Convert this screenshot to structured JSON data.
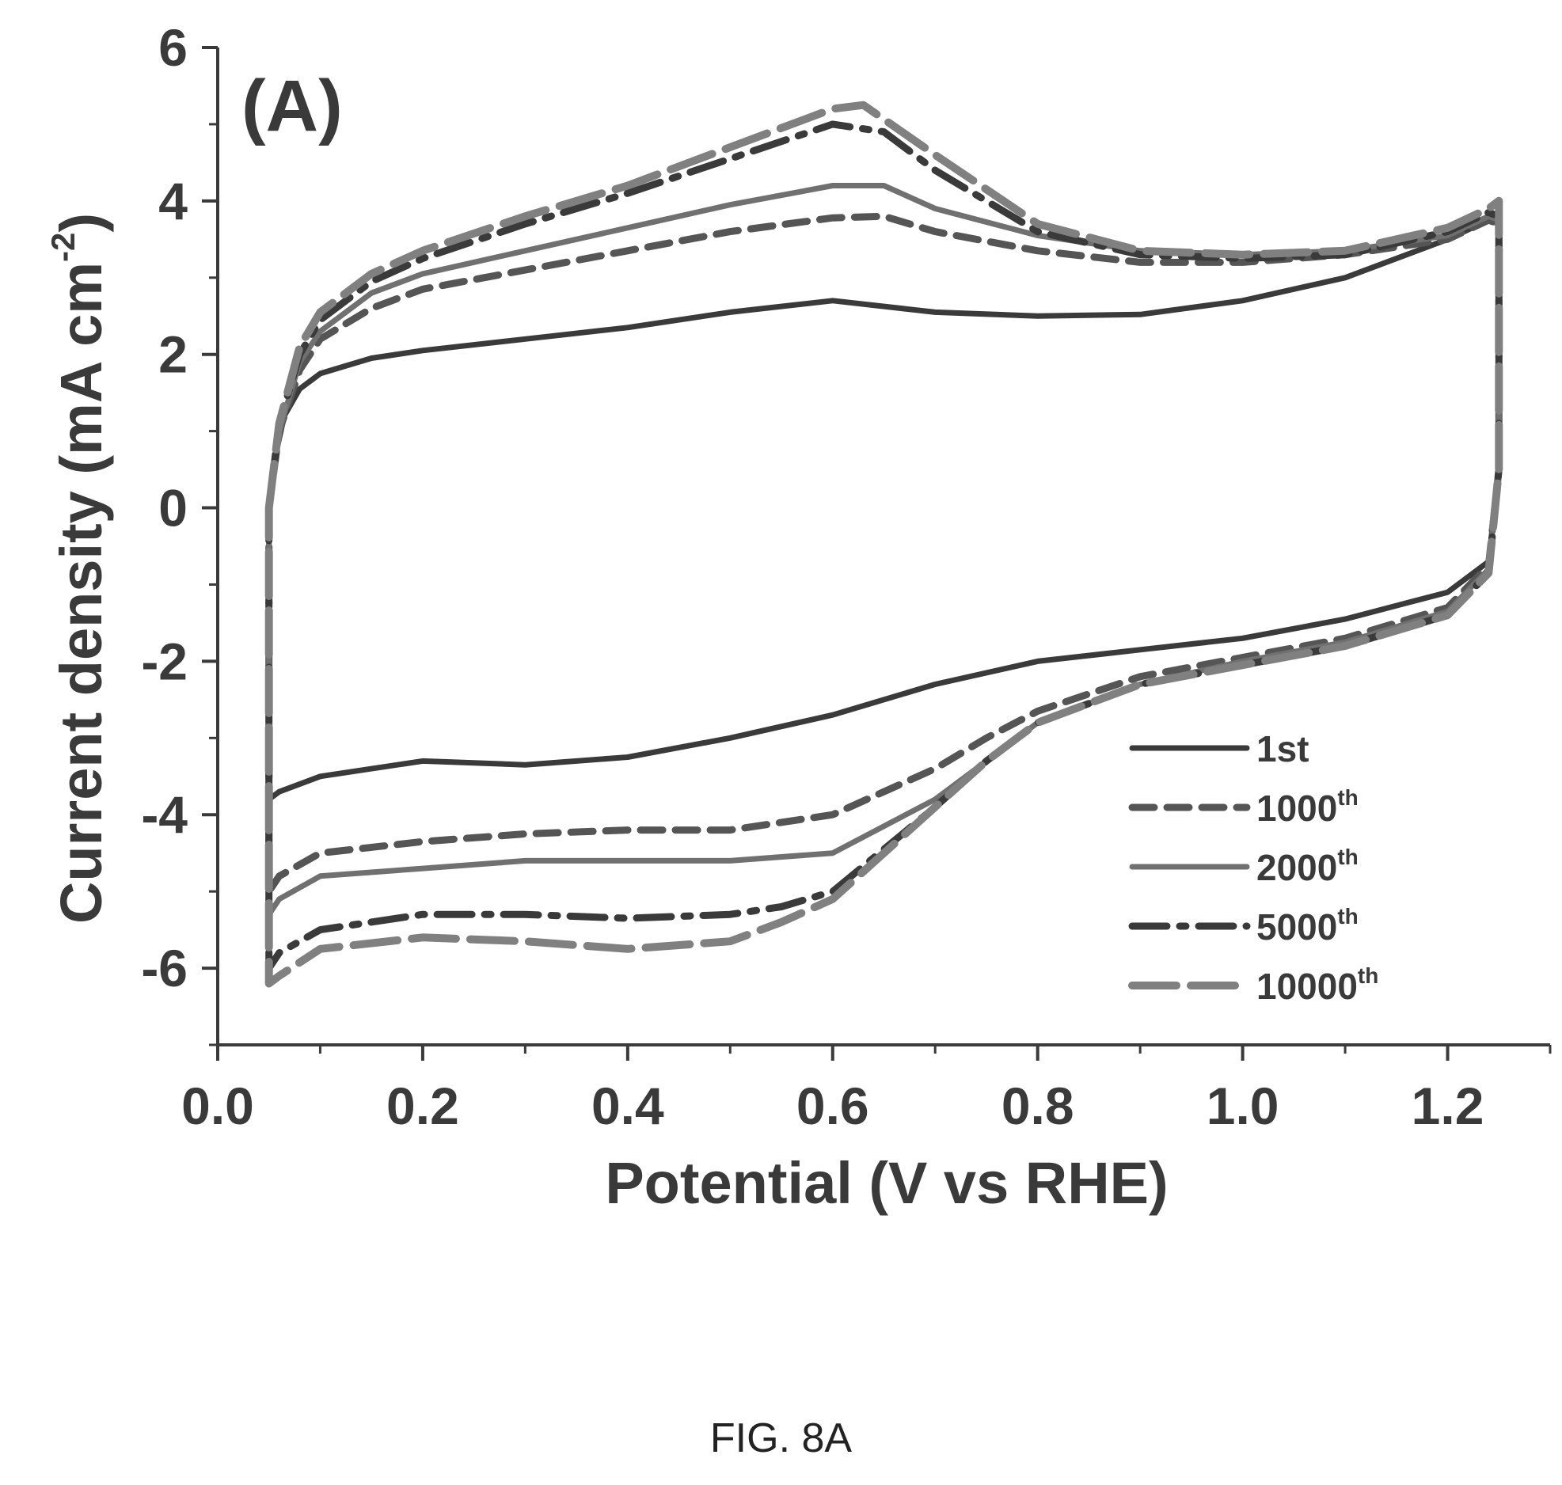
{
  "figure": {
    "caption": "FIG. 8A",
    "panel_label": "(A)"
  },
  "chart_data": {
    "type": "line",
    "title": "",
    "xlabel": "Potential (V vs RHE)",
    "ylabel": "Current density (mA cm",
    "ylabel_sup": "-2",
    "ylabel_end": ")",
    "xlim": [
      0.0,
      1.3
    ],
    "ylim": [
      -7,
      6
    ],
    "x_ticks": [
      0.0,
      0.2,
      0.4,
      0.6,
      0.8,
      1.0,
      1.2
    ],
    "x_tick_labels": [
      "0.0",
      "0.2",
      "0.4",
      "0.6",
      "0.8",
      "1.0",
      "1.2"
    ],
    "y_ticks": [
      -6,
      -4,
      -2,
      0,
      2,
      4,
      6
    ],
    "y_tick_labels": [
      "-6",
      "-4",
      "-2",
      "0",
      "2",
      "4",
      "6"
    ],
    "grid": false,
    "legend_position": "bottom-right",
    "series": [
      {
        "name": "1st",
        "sup": "",
        "style": "solid",
        "color": "#3a3a3a",
        "x": [
          0.05,
          0.055,
          0.065,
          0.08,
          0.1,
          0.15,
          0.2,
          0.3,
          0.4,
          0.5,
          0.6,
          0.7,
          0.8,
          0.9,
          1.0,
          1.1,
          1.2,
          1.24,
          1.25,
          1.25,
          1.24,
          1.2,
          1.1,
          1.0,
          0.9,
          0.8,
          0.7,
          0.6,
          0.5,
          0.4,
          0.3,
          0.2,
          0.1,
          0.06,
          0.05,
          0.05
        ],
        "y": [
          0.0,
          0.6,
          1.2,
          1.55,
          1.75,
          1.95,
          2.05,
          2.2,
          2.35,
          2.55,
          2.7,
          2.55,
          2.5,
          2.52,
          2.7,
          3.0,
          3.5,
          3.75,
          3.7,
          0.5,
          -0.7,
          -1.1,
          -1.45,
          -1.7,
          -1.85,
          -2.0,
          -2.3,
          -2.7,
          -3.0,
          -3.25,
          -3.35,
          -3.3,
          -3.5,
          -3.7,
          -3.8,
          0.0
        ]
      },
      {
        "name": "1000",
        "sup": "th",
        "style": "dashed",
        "color": "#555555",
        "x": [
          0.05,
          0.06,
          0.08,
          0.1,
          0.15,
          0.2,
          0.3,
          0.4,
          0.5,
          0.6,
          0.65,
          0.7,
          0.8,
          0.9,
          1.0,
          1.1,
          1.2,
          1.24,
          1.25,
          1.25,
          1.24,
          1.2,
          1.1,
          1.0,
          0.9,
          0.8,
          0.75,
          0.7,
          0.6,
          0.5,
          0.4,
          0.3,
          0.2,
          0.1,
          0.06,
          0.05,
          0.05
        ],
        "y": [
          0.0,
          1.0,
          1.8,
          2.2,
          2.6,
          2.85,
          3.1,
          3.35,
          3.6,
          3.78,
          3.8,
          3.6,
          3.35,
          3.2,
          3.2,
          3.3,
          3.5,
          3.75,
          3.7,
          0.5,
          -0.75,
          -1.3,
          -1.7,
          -1.95,
          -2.2,
          -2.65,
          -3.0,
          -3.4,
          -4.0,
          -4.2,
          -4.2,
          -4.25,
          -4.35,
          -4.5,
          -4.8,
          -5.0,
          0.0
        ]
      },
      {
        "name": "2000",
        "sup": "th",
        "style": "solid",
        "color": "#707070",
        "x": [
          0.05,
          0.06,
          0.08,
          0.1,
          0.15,
          0.2,
          0.3,
          0.4,
          0.5,
          0.6,
          0.65,
          0.7,
          0.8,
          0.9,
          1.0,
          1.1,
          1.2,
          1.24,
          1.25,
          1.25,
          1.24,
          1.2,
          1.1,
          1.0,
          0.9,
          0.8,
          0.75,
          0.7,
          0.6,
          0.5,
          0.4,
          0.3,
          0.2,
          0.1,
          0.06,
          0.05,
          0.05
        ],
        "y": [
          0.0,
          1.0,
          1.9,
          2.3,
          2.8,
          3.05,
          3.35,
          3.65,
          3.95,
          4.2,
          4.2,
          3.9,
          3.55,
          3.35,
          3.3,
          3.35,
          3.55,
          3.8,
          3.75,
          0.5,
          -0.8,
          -1.35,
          -1.75,
          -2.0,
          -2.3,
          -2.8,
          -3.3,
          -3.8,
          -4.5,
          -4.6,
          -4.6,
          -4.6,
          -4.7,
          -4.8,
          -5.1,
          -5.3,
          0.0
        ]
      },
      {
        "name": "5000",
        "sup": "th",
        "style": "dashdot",
        "color": "#3a3a3a",
        "x": [
          0.05,
          0.06,
          0.08,
          0.1,
          0.15,
          0.2,
          0.3,
          0.4,
          0.5,
          0.6,
          0.65,
          0.7,
          0.8,
          0.9,
          1.0,
          1.1,
          1.2,
          1.24,
          1.25,
          1.25,
          1.24,
          1.2,
          1.1,
          1.0,
          0.9,
          0.8,
          0.75,
          0.7,
          0.6,
          0.55,
          0.5,
          0.4,
          0.3,
          0.2,
          0.1,
          0.06,
          0.05,
          0.05
        ],
        "y": [
          0.0,
          1.1,
          2.0,
          2.45,
          2.95,
          3.25,
          3.7,
          4.1,
          4.55,
          5.0,
          4.9,
          4.4,
          3.6,
          3.3,
          3.25,
          3.3,
          3.6,
          3.85,
          3.8,
          0.5,
          -0.85,
          -1.4,
          -1.8,
          -2.05,
          -2.3,
          -2.8,
          -3.3,
          -3.9,
          -5.0,
          -5.2,
          -5.3,
          -5.35,
          -5.3,
          -5.3,
          -5.5,
          -5.8,
          -6.0,
          0.0
        ]
      },
      {
        "name": "10000",
        "sup": "th",
        "style": "longdash",
        "color": "#808080",
        "x": [
          0.05,
          0.06,
          0.08,
          0.1,
          0.15,
          0.2,
          0.3,
          0.4,
          0.5,
          0.6,
          0.63,
          0.7,
          0.8,
          0.9,
          1.0,
          1.1,
          1.2,
          1.24,
          1.25,
          1.25,
          1.24,
          1.2,
          1.1,
          1.0,
          0.9,
          0.8,
          0.75,
          0.7,
          0.6,
          0.55,
          0.5,
          0.4,
          0.3,
          0.2,
          0.1,
          0.06,
          0.05,
          0.05
        ],
        "y": [
          0.0,
          1.1,
          2.1,
          2.55,
          3.05,
          3.35,
          3.8,
          4.2,
          4.7,
          5.2,
          5.25,
          4.6,
          3.7,
          3.35,
          3.3,
          3.35,
          3.65,
          3.9,
          4.0,
          0.5,
          -0.85,
          -1.4,
          -1.8,
          -2.05,
          -2.3,
          -2.8,
          -3.3,
          -3.9,
          -5.1,
          -5.4,
          -5.65,
          -5.75,
          -5.65,
          -5.6,
          -5.75,
          -6.1,
          -6.2,
          0.0
        ]
      }
    ]
  }
}
